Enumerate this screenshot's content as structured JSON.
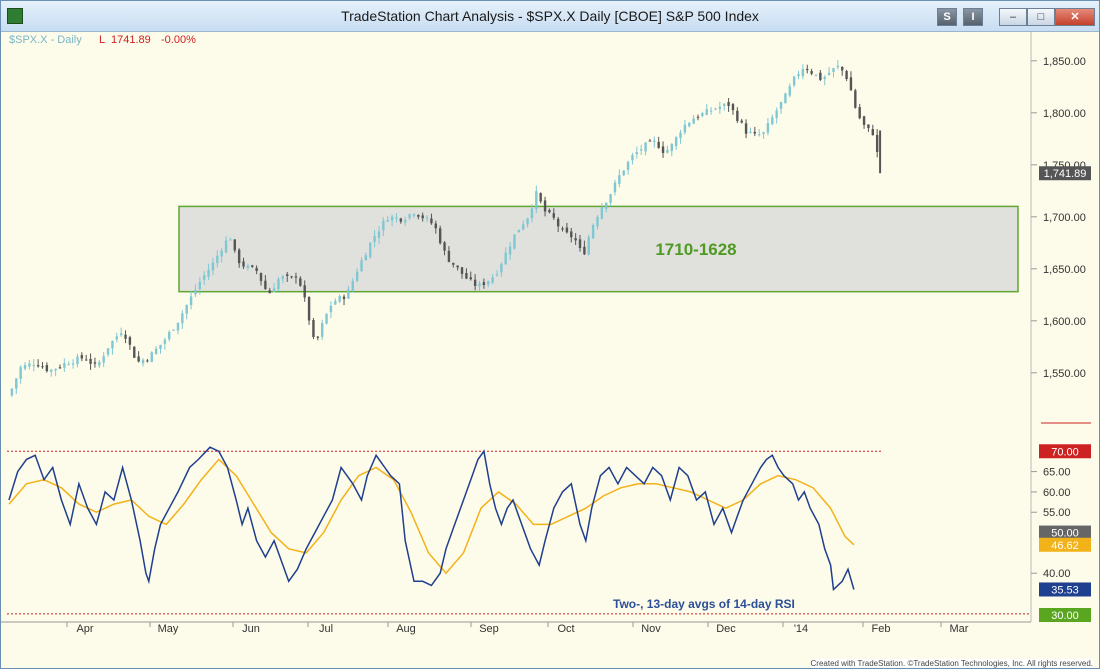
{
  "window": {
    "title": "TradeStation Chart Analysis - $SPX.X Daily [CBOE] S&P 500 Index",
    "btn_s": "S",
    "btn_i": "I",
    "btn_min": "–",
    "btn_max": "□",
    "btn_close": "✕"
  },
  "legend": {
    "symbol": "$SPX.X - Daily",
    "field": "L",
    "last": "1741.89",
    "change": "-0.00%"
  },
  "footer": "Created with TradeStation. ©TradeStation Technologies, Inc. All rights reserved.",
  "colors": {
    "background": "#fdfbe9",
    "up_candle": "#7fc8d3",
    "down_candle": "#555555",
    "zone_border": "#5fa632",
    "zone_fill": "#e0e0dd",
    "zone_label": "#4f9a22",
    "rsi_fast": "#1f3f8f",
    "rsi_slow": "#f2b21a",
    "overbought": "#cc2222",
    "last_price_box": "#555555"
  },
  "chart_data": [
    {
      "type": "candlestick",
      "series_name": "$SPX.X Daily",
      "x_months": [
        "Apr",
        "May",
        "Jun",
        "Jul",
        "Aug",
        "Sep",
        "Oct",
        "Nov",
        "Dec",
        "'14",
        "Feb",
        "Mar"
      ],
      "y_ticks": [
        "1,550.00",
        "1,600.00",
        "1,650.00",
        "1,700.00",
        "1,750.00",
        "1,800.00",
        "1,850.00"
      ],
      "ylim": [
        1520,
        1870
      ],
      "last_value": 1741.89,
      "last_label": "1,741.89",
      "zone": {
        "high": 1710,
        "low": 1628,
        "label": "1710-1628"
      },
      "close_path": [
        [
          0,
          1528
        ],
        [
          8,
          1555
        ],
        [
          18,
          1560
        ],
        [
          28,
          1552
        ],
        [
          40,
          1560
        ],
        [
          52,
          1565
        ],
        [
          60,
          1555
        ],
        [
          68,
          1575
        ],
        [
          78,
          1592
        ],
        [
          88,
          1560
        ],
        [
          96,
          1565
        ],
        [
          106,
          1580
        ],
        [
          116,
          1600
        ],
        [
          124,
          1620
        ],
        [
          132,
          1640
        ],
        [
          140,
          1655
        ],
        [
          148,
          1675
        ],
        [
          152,
          1680
        ],
        [
          156,
          1660
        ],
        [
          162,
          1652
        ],
        [
          170,
          1648
        ],
        [
          178,
          1625
        ],
        [
          186,
          1642
        ],
        [
          194,
          1640
        ],
        [
          198,
          1645
        ],
        [
          204,
          1615
        ],
        [
          210,
          1575
        ],
        [
          216,
          1600
        ],
        [
          222,
          1618
        ],
        [
          232,
          1625
        ],
        [
          240,
          1652
        ],
        [
          250,
          1680
        ],
        [
          260,
          1700
        ],
        [
          270,
          1698
        ],
        [
          278,
          1705
        ],
        [
          286,
          1698
        ],
        [
          292,
          1692
        ],
        [
          300,
          1662
        ],
        [
          308,
          1650
        ],
        [
          316,
          1638
        ],
        [
          322,
          1633
        ],
        [
          328,
          1638
        ],
        [
          334,
          1645
        ],
        [
          340,
          1662
        ],
        [
          348,
          1685
        ],
        [
          356,
          1700
        ],
        [
          362,
          1722
        ],
        [
          368,
          1705
        ],
        [
          374,
          1698
        ],
        [
          380,
          1685
        ],
        [
          388,
          1680
        ],
        [
          394,
          1662
        ],
        [
          400,
          1690
        ],
        [
          406,
          1708
        ],
        [
          412,
          1720
        ],
        [
          420,
          1742
        ],
        [
          428,
          1758
        ],
        [
          436,
          1768
        ],
        [
          444,
          1772
        ],
        [
          450,
          1762
        ],
        [
          456,
          1770
        ],
        [
          462,
          1786
        ],
        [
          470,
          1795
        ],
        [
          478,
          1800
        ],
        [
          486,
          1805
        ],
        [
          494,
          1808
        ],
        [
          500,
          1795
        ],
        [
          506,
          1782
        ],
        [
          512,
          1778
        ],
        [
          518,
          1780
        ],
        [
          526,
          1800
        ],
        [
          534,
          1818
        ],
        [
          540,
          1835
        ],
        [
          546,
          1845
        ],
        [
          552,
          1838
        ],
        [
          558,
          1832
        ],
        [
          564,
          1840
        ],
        [
          570,
          1845
        ],
        [
          576,
          1832
        ],
        [
          582,
          1800
        ],
        [
          588,
          1785
        ],
        [
          594,
          1780
        ],
        [
          598,
          1741.89
        ]
      ]
    },
    {
      "type": "line",
      "title": "Two-, 13-day avgs of 14-day RSI",
      "y_ticks": [
        "40.00",
        "55.00",
        "60.00",
        "65.00"
      ],
      "ylim": [
        28,
        74
      ],
      "levels": [
        {
          "value": 70,
          "label": "70.00"
        },
        {
          "value": 50,
          "label": "50.00"
        },
        {
          "value": 30,
          "label": "30.00"
        }
      ],
      "series": [
        {
          "key": "rsi2",
          "last_label": "35.53",
          "points": [
            [
              0,
              58
            ],
            [
              6,
              65
            ],
            [
              12,
              68
            ],
            [
              18,
              69
            ],
            [
              24,
              63
            ],
            [
              30,
              66
            ],
            [
              36,
              58
            ],
            [
              42,
              52
            ],
            [
              48,
              62
            ],
            [
              54,
              56
            ],
            [
              60,
              52
            ],
            [
              66,
              60
            ],
            [
              72,
              58
            ],
            [
              78,
              66
            ],
            [
              84,
              58
            ],
            [
              90,
              48
            ],
            [
              94,
              40
            ],
            [
              96,
              38
            ],
            [
              100,
              46
            ],
            [
              104,
              52
            ],
            [
              110,
              56
            ],
            [
              116,
              60
            ],
            [
              124,
              66
            ],
            [
              130,
              68
            ],
            [
              138,
              71
            ],
            [
              144,
              70
            ],
            [
              150,
              66
            ],
            [
              156,
              58
            ],
            [
              160,
              52
            ],
            [
              164,
              56
            ],
            [
              170,
              48
            ],
            [
              176,
              44
            ],
            [
              182,
              48
            ],
            [
              188,
              42
            ],
            [
              192,
              38
            ],
            [
              198,
              41
            ],
            [
              204,
              46
            ],
            [
              210,
              50
            ],
            [
              216,
              54
            ],
            [
              222,
              58
            ],
            [
              228,
              66
            ],
            [
              236,
              62
            ],
            [
              242,
              58
            ],
            [
              246,
              64
            ],
            [
              252,
              69
            ],
            [
              258,
              66
            ],
            [
              262,
              64
            ],
            [
              268,
              62
            ],
            [
              272,
              48
            ],
            [
              278,
              38
            ],
            [
              284,
              38
            ],
            [
              290,
              37
            ],
            [
              296,
              40
            ],
            [
              300,
              46
            ],
            [
              306,
              52
            ],
            [
              312,
              58
            ],
            [
              318,
              64
            ],
            [
              322,
              68
            ],
            [
              326,
              70
            ],
            [
              330,
              62
            ],
            [
              334,
              56
            ],
            [
              338,
              52
            ],
            [
              342,
              56
            ],
            [
              346,
              58
            ],
            [
              352,
              52
            ],
            [
              358,
              46
            ],
            [
              364,
              42
            ],
            [
              368,
              48
            ],
            [
              374,
              56
            ],
            [
              380,
              60
            ],
            [
              386,
              62
            ],
            [
              392,
              52
            ],
            [
              396,
              48
            ],
            [
              400,
              56
            ],
            [
              406,
              64
            ],
            [
              412,
              66
            ],
            [
              418,
              62
            ],
            [
              424,
              66
            ],
            [
              430,
              64
            ],
            [
              436,
              62
            ],
            [
              442,
              66
            ],
            [
              448,
              64
            ],
            [
              454,
              58
            ],
            [
              460,
              66
            ],
            [
              466,
              64
            ],
            [
              472,
              58
            ],
            [
              478,
              60
            ],
            [
              484,
              52
            ],
            [
              490,
              56
            ],
            [
              496,
              50
            ],
            [
              500,
              54
            ],
            [
              504,
              58
            ],
            [
              510,
              62
            ],
            [
              516,
              66
            ],
            [
              520,
              68
            ],
            [
              524,
              69
            ],
            [
              528,
              66
            ],
            [
              532,
              64
            ],
            [
              538,
              62
            ],
            [
              542,
              58
            ],
            [
              546,
              60
            ],
            [
              550,
              56
            ],
            [
              556,
              52
            ],
            [
              560,
              46
            ],
            [
              564,
              42
            ],
            [
              566,
              36
            ],
            [
              572,
              38
            ],
            [
              576,
              41
            ],
            [
              580,
              36
            ]
          ]
        },
        {
          "key": "rsi13",
          "last_label": "46.62",
          "points": [
            [
              0,
              57
            ],
            [
              12,
              62
            ],
            [
              24,
              63
            ],
            [
              36,
              61
            ],
            [
              48,
              57
            ],
            [
              60,
              55
            ],
            [
              72,
              57
            ],
            [
              84,
              58
            ],
            [
              96,
              54
            ],
            [
              108,
              52
            ],
            [
              120,
              57
            ],
            [
              132,
              63
            ],
            [
              144,
              68
            ],
            [
              156,
              64
            ],
            [
              168,
              57
            ],
            [
              180,
              50
            ],
            [
              192,
              46
            ],
            [
              204,
              45
            ],
            [
              216,
              50
            ],
            [
              228,
              58
            ],
            [
              240,
              64
            ],
            [
              252,
              66
            ],
            [
              264,
              63
            ],
            [
              276,
              55
            ],
            [
              288,
              45
            ],
            [
              300,
              40
            ],
            [
              312,
              45
            ],
            [
              324,
              56
            ],
            [
              336,
              60
            ],
            [
              348,
              57
            ],
            [
              360,
              52
            ],
            [
              372,
              52
            ],
            [
              384,
              54
            ],
            [
              396,
              56
            ],
            [
              408,
              59
            ],
            [
              420,
              61
            ],
            [
              432,
              62
            ],
            [
              444,
              62
            ],
            [
              456,
              61
            ],
            [
              468,
              60
            ],
            [
              480,
              58
            ],
            [
              492,
              56
            ],
            [
              504,
              58
            ],
            [
              516,
              62
            ],
            [
              528,
              64
            ],
            [
              540,
              63
            ],
            [
              552,
              61
            ],
            [
              564,
              56
            ],
            [
              574,
              49
            ],
            [
              580,
              47
            ]
          ]
        }
      ]
    }
  ]
}
